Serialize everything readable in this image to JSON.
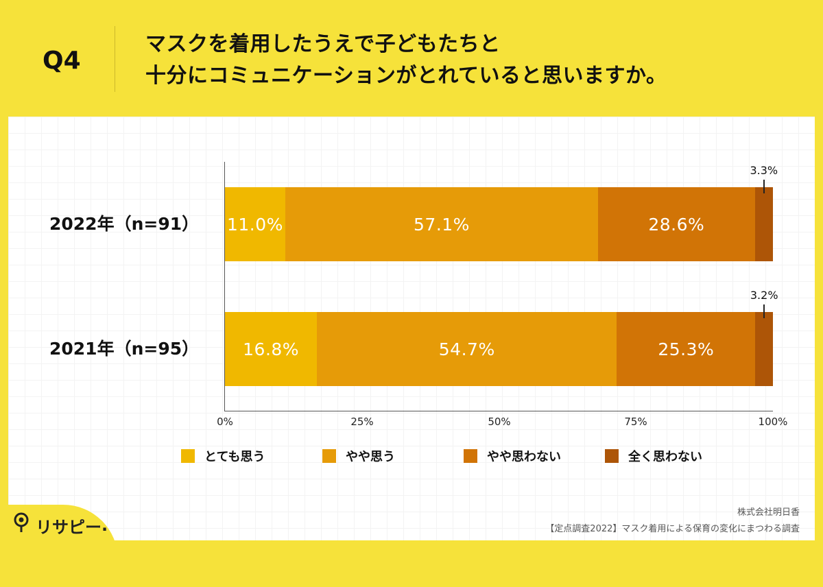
{
  "header": {
    "q_label": "Q4",
    "question_line1": "マスクを着用したうえで子どもたちと",
    "question_line2": "十分にコミュニケーションがとれていると思いますか。"
  },
  "chart_data": {
    "type": "bar",
    "orientation": "horizontal",
    "stacked": true,
    "percent_stacked": true,
    "categories": [
      "2022年（n=91）",
      "2021年（n=95）"
    ],
    "series": [
      {
        "name": "とても思う",
        "color": "#f0b800",
        "values": [
          11.0,
          16.8
        ],
        "labels": [
          "11.0%",
          "16.8%"
        ]
      },
      {
        "name": "やや思う",
        "color": "#e69b08",
        "values": [
          57.1,
          54.7
        ],
        "labels": [
          "57.1%",
          "54.7%"
        ]
      },
      {
        "name": "やや思わない",
        "color": "#d17406",
        "values": [
          28.6,
          25.3
        ],
        "labels": [
          "28.6%",
          "25.3%"
        ]
      },
      {
        "name": "全く思わない",
        "color": "#ad5507",
        "values": [
          3.3,
          3.2
        ],
        "labels": [
          "3.3%",
          "3.2%"
        ]
      }
    ],
    "xlim": [
      0,
      100
    ],
    "x_ticks": [
      "0%",
      "25%",
      "50%",
      "75%",
      "100%"
    ],
    "legend_position": "bottom"
  },
  "footer": {
    "company": "株式会社明日香",
    "source": "【定点調査2022】マスク着用による保育の変化にまつわる調査",
    "logo_text": "リサピー",
    "logo_dot": "."
  }
}
